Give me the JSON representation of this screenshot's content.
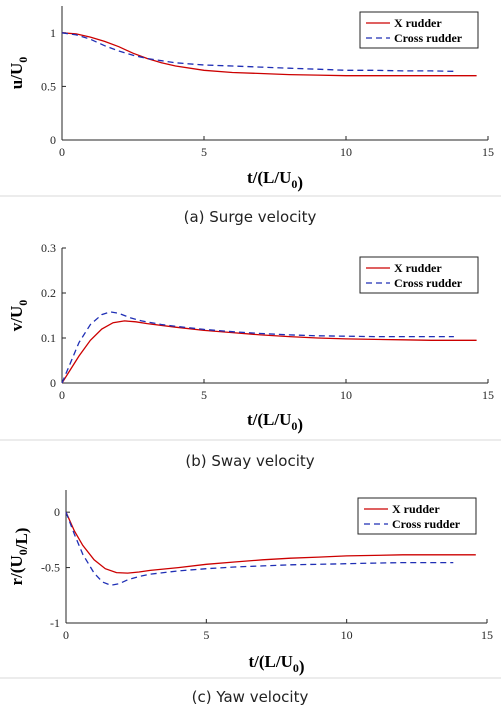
{
  "chart_data": [
    {
      "type": "line",
      "caption": "(a) Surge velocity",
      "ylabel": "u/U0",
      "xlabel": "t/(L/U0)",
      "xlim": [
        0,
        15
      ],
      "ylim": [
        0,
        1.25
      ],
      "xticks": [
        0,
        5,
        10,
        15
      ],
      "yticks": [
        0,
        0.5,
        1
      ],
      "ytick_labels": [
        "0",
        "0.5",
        "1"
      ],
      "legend_position": "top-right",
      "series": [
        {
          "name": "X rudder",
          "color": "#cc0000",
          "dash": "solid",
          "x": [
            0,
            0.5,
            1,
            1.5,
            2,
            2.5,
            3,
            3.5,
            4,
            5,
            6,
            7,
            8,
            9,
            10,
            11,
            12,
            13,
            14,
            14.6
          ],
          "y": [
            1.0,
            0.99,
            0.96,
            0.92,
            0.87,
            0.81,
            0.76,
            0.72,
            0.69,
            0.65,
            0.63,
            0.62,
            0.61,
            0.605,
            0.6,
            0.6,
            0.6,
            0.6,
            0.6,
            0.6
          ]
        },
        {
          "name": "Cross rudder",
          "color": "#1f2fb5",
          "dash": "dashed",
          "x": [
            0,
            0.5,
            1,
            1.5,
            2,
            2.5,
            3,
            3.5,
            4,
            5,
            6,
            7,
            8,
            9,
            10,
            11,
            12,
            13,
            13.9
          ],
          "y": [
            1.0,
            0.98,
            0.94,
            0.88,
            0.83,
            0.79,
            0.76,
            0.74,
            0.72,
            0.7,
            0.69,
            0.68,
            0.67,
            0.66,
            0.65,
            0.65,
            0.645,
            0.645,
            0.64
          ]
        }
      ]
    },
    {
      "type": "line",
      "caption": "(b) Sway velocity",
      "ylabel": "v/U0",
      "xlabel": "t/(L/U0)",
      "xlim": [
        0,
        15
      ],
      "ylim": [
        0,
        0.3
      ],
      "xticks": [
        0,
        5,
        10,
        15
      ],
      "yticks": [
        0,
        0.1,
        0.2,
        0.3
      ],
      "ytick_labels": [
        "0",
        "0.1",
        "0.2",
        "0.3"
      ],
      "legend_position": "top-right",
      "series": [
        {
          "name": "X rudder",
          "color": "#cc0000",
          "dash": "solid",
          "x": [
            0,
            0.3,
            0.6,
            1,
            1.4,
            1.8,
            2.2,
            2.6,
            3,
            4,
            5,
            6,
            7,
            8,
            9,
            10,
            11,
            12,
            13,
            14,
            14.6
          ],
          "y": [
            0,
            0.03,
            0.06,
            0.095,
            0.12,
            0.134,
            0.138,
            0.136,
            0.132,
            0.124,
            0.117,
            0.112,
            0.107,
            0.103,
            0.1,
            0.098,
            0.097,
            0.096,
            0.095,
            0.095,
            0.095
          ]
        },
        {
          "name": "Cross rudder",
          "color": "#1f2fb5",
          "dash": "dashed",
          "x": [
            0,
            0.3,
            0.6,
            1,
            1.4,
            1.7,
            2,
            2.4,
            2.8,
            3.5,
            4,
            5,
            6,
            7,
            8,
            9,
            10,
            11,
            12,
            13,
            13.8
          ],
          "y": [
            0,
            0.045,
            0.09,
            0.13,
            0.152,
            0.158,
            0.155,
            0.145,
            0.138,
            0.13,
            0.126,
            0.119,
            0.114,
            0.11,
            0.107,
            0.105,
            0.104,
            0.103,
            0.103,
            0.103,
            0.103
          ]
        }
      ]
    },
    {
      "type": "line",
      "caption": "(c) Yaw velocity",
      "ylabel": "r/(U0/L)",
      "xlabel": "t/(L/U0)",
      "xlim": [
        0,
        15
      ],
      "ylim": [
        -1,
        0.2
      ],
      "xticks": [
        0,
        5,
        10,
        15
      ],
      "yticks": [
        -1,
        -0.5,
        0
      ],
      "ytick_labels": [
        "-1",
        "-0.5",
        "0"
      ],
      "legend_position": "top-right",
      "series": [
        {
          "name": "X rudder",
          "color": "#cc0000",
          "dash": "solid",
          "x": [
            0,
            0.3,
            0.6,
            1,
            1.4,
            1.8,
            2.2,
            2.6,
            3,
            4,
            5,
            6,
            7,
            8,
            9,
            10,
            11,
            12,
            13,
            14,
            14.6
          ],
          "y": [
            0,
            -0.17,
            -0.3,
            -0.43,
            -0.51,
            -0.545,
            -0.55,
            -0.54,
            -0.525,
            -0.5,
            -0.47,
            -0.45,
            -0.43,
            -0.415,
            -0.405,
            -0.395,
            -0.39,
            -0.385,
            -0.385,
            -0.385,
            -0.385
          ]
        },
        {
          "name": "Cross rudder",
          "color": "#1f2fb5",
          "dash": "dashed",
          "x": [
            0,
            0.3,
            0.6,
            1,
            1.3,
            1.6,
            1.9,
            2.2,
            2.6,
            3,
            4,
            5,
            6,
            7,
            8,
            9,
            10,
            11,
            12,
            13,
            13.8
          ],
          "y": [
            0,
            -0.2,
            -0.38,
            -0.55,
            -0.63,
            -0.66,
            -0.645,
            -0.61,
            -0.58,
            -0.56,
            -0.53,
            -0.51,
            -0.495,
            -0.485,
            -0.475,
            -0.47,
            -0.465,
            -0.46,
            -0.455,
            -0.455,
            -0.455
          ]
        }
      ]
    }
  ]
}
